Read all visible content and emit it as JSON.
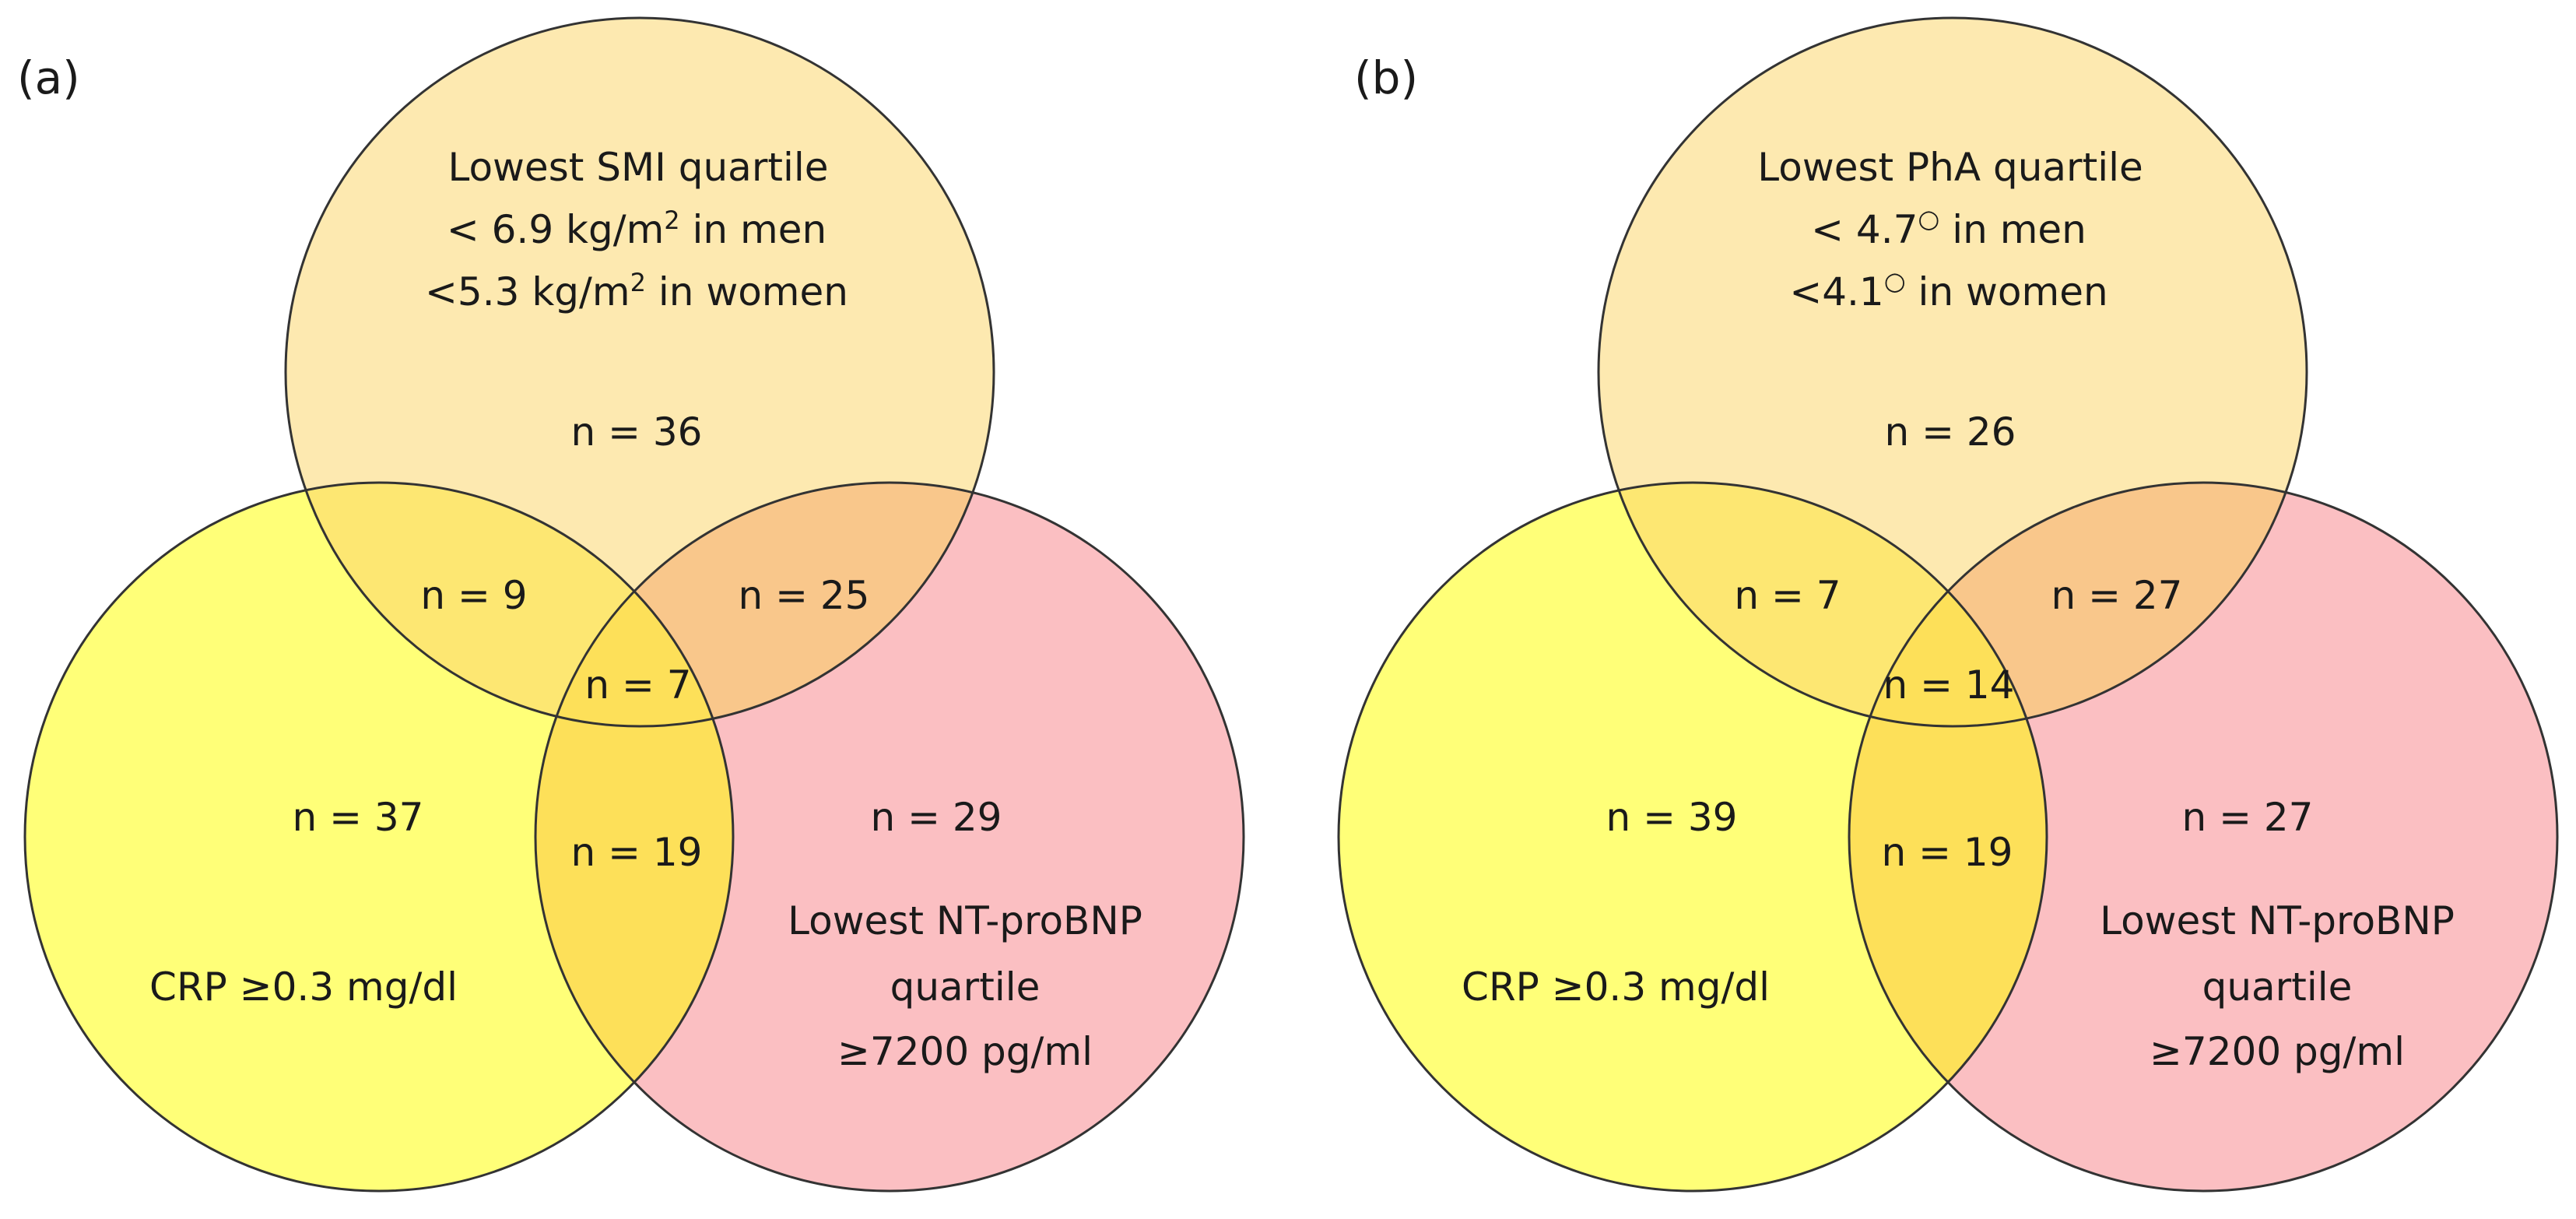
{
  "colors": {
    "top": "#fde9b0",
    "left": "#ffff78",
    "right": "#fbbfc2",
    "top_left": "#fde772",
    "top_right": "#f9c78b",
    "left_right": "#fde059",
    "center": "#fde059",
    "stroke": "#333333"
  },
  "panels": [
    {
      "label": "(a)",
      "top_set": {
        "title": "Lowest SMI quartile",
        "line2": {
          "prefix": "< 6.9 kg/m",
          "sup": "2",
          "suffix": " in men"
        },
        "line3": {
          "prefix": "<5.3 kg/m",
          "sup": "2",
          "suffix": " in women"
        }
      },
      "left_set": {
        "label": "CRP ≥0.3 mg/dl"
      },
      "right_set": {
        "line1": "Lowest NT-proBNP",
        "line2": "quartile",
        "line3": "≥7200 pg/ml"
      },
      "counts": {
        "top_only": "n = 36",
        "left_only": "n = 37",
        "right_only": "n = 29",
        "top_left": "n = 9",
        "top_right": "n = 25",
        "left_right": "n = 19",
        "center": "n = 7"
      }
    },
    {
      "label": "(b)",
      "top_set": {
        "title": "Lowest PhA quartile",
        "line2": {
          "prefix": "< 4.7",
          "sup": "○",
          "suffix": "  in men"
        },
        "line3": {
          "prefix": "<4.1",
          "sup": "○",
          "suffix": "  in women"
        }
      },
      "left_set": {
        "label": "CRP ≥0.3 mg/dl"
      },
      "right_set": {
        "line1": "Lowest NT-proBNP",
        "line2": "quartile",
        "line3": "≥7200 pg/ml"
      },
      "counts": {
        "top_only": "n = 26",
        "left_only": "n = 39",
        "right_only": "n = 27",
        "top_left": "n = 7",
        "top_right": "n = 27",
        "left_right": "n = 19",
        "center": "n = 14"
      }
    }
  ]
}
